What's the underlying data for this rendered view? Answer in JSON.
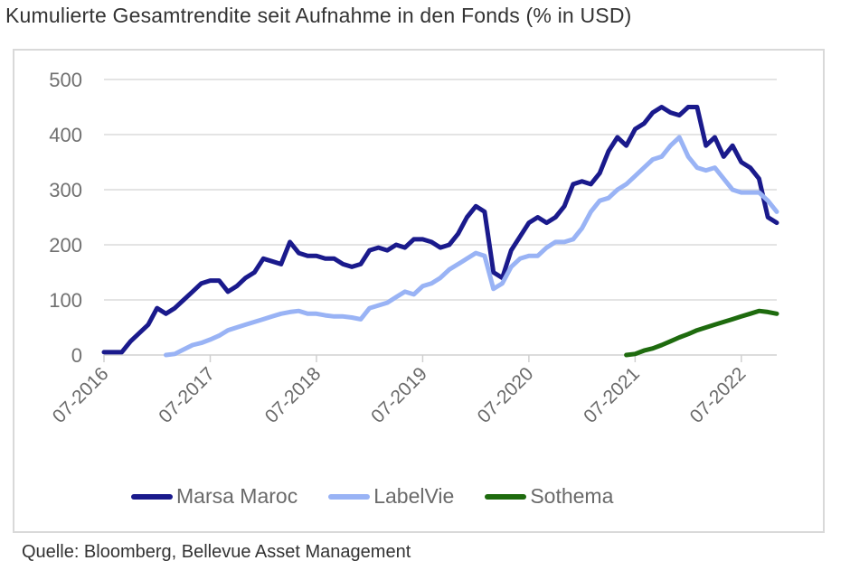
{
  "title": "Kumulierte Gesamtrendite seit Aufnahme in den Fonds (% in USD)",
  "source": "Quelle: Bloomberg, Bellevue Asset Management",
  "chart_data": {
    "type": "line",
    "title": "Kumulierte Gesamtrendite seit Aufnahme in den Fonds (% in USD)",
    "xlabel": "",
    "ylabel": "",
    "ylim": [
      0,
      500
    ],
    "yticks": [
      0,
      100,
      200,
      300,
      400,
      500
    ],
    "xlim": [
      "2016-07",
      "2022-11"
    ],
    "xticks": [
      {
        "date": "2016-07",
        "label": "07-2016"
      },
      {
        "date": "2017-07",
        "label": "07-2017"
      },
      {
        "date": "2018-07",
        "label": "07-2018"
      },
      {
        "date": "2019-07",
        "label": "07-2019"
      },
      {
        "date": "2020-07",
        "label": "07-2020"
      },
      {
        "date": "2021-07",
        "label": "07-2021"
      },
      {
        "date": "2022-07",
        "label": "07-2022"
      }
    ],
    "grid": true,
    "legend": "bottom",
    "x": [
      "2016-07",
      "2016-08",
      "2016-09",
      "2016-10",
      "2016-11",
      "2016-12",
      "2017-01",
      "2017-02",
      "2017-03",
      "2017-04",
      "2017-05",
      "2017-06",
      "2017-07",
      "2017-08",
      "2017-09",
      "2017-10",
      "2017-11",
      "2017-12",
      "2018-01",
      "2018-02",
      "2018-03",
      "2018-04",
      "2018-05",
      "2018-06",
      "2018-07",
      "2018-08",
      "2018-09",
      "2018-10",
      "2018-11",
      "2018-12",
      "2019-01",
      "2019-02",
      "2019-03",
      "2019-04",
      "2019-05",
      "2019-06",
      "2019-07",
      "2019-08",
      "2019-09",
      "2019-10",
      "2019-11",
      "2019-12",
      "2020-01",
      "2020-02",
      "2020-03",
      "2020-04",
      "2020-05",
      "2020-06",
      "2020-07",
      "2020-08",
      "2020-09",
      "2020-10",
      "2020-11",
      "2020-12",
      "2021-01",
      "2021-02",
      "2021-03",
      "2021-04",
      "2021-05",
      "2021-06",
      "2021-07",
      "2021-08",
      "2021-09",
      "2021-10",
      "2021-11",
      "2021-12",
      "2022-01",
      "2022-02",
      "2022-03",
      "2022-04",
      "2022-05",
      "2022-06",
      "2022-07",
      "2022-08",
      "2022-09",
      "2022-10",
      "2022-11"
    ],
    "series": [
      {
        "name": "Marsa Maroc",
        "color": "#1a1a8c",
        "values": [
          5,
          5,
          5,
          25,
          40,
          55,
          85,
          75,
          85,
          100,
          115,
          130,
          135,
          135,
          115,
          125,
          140,
          150,
          175,
          170,
          165,
          205,
          185,
          180,
          180,
          175,
          175,
          165,
          160,
          165,
          190,
          195,
          190,
          200,
          195,
          210,
          210,
          205,
          195,
          200,
          220,
          250,
          270,
          260,
          150,
          140,
          190,
          215,
          240,
          250,
          240,
          250,
          270,
          310,
          315,
          310,
          330,
          370,
          395,
          380,
          410,
          420,
          440,
          450,
          440,
          435,
          450,
          450,
          380,
          395,
          360,
          380,
          350,
          340,
          320,
          250,
          240
        ]
      },
      {
        "name": "LabelVie",
        "color": "#99b3f5",
        "values": [
          null,
          null,
          null,
          null,
          null,
          null,
          null,
          0,
          2,
          10,
          18,
          22,
          28,
          35,
          45,
          50,
          55,
          60,
          65,
          70,
          75,
          78,
          80,
          75,
          75,
          72,
          70,
          70,
          68,
          65,
          85,
          90,
          95,
          105,
          115,
          110,
          125,
          130,
          140,
          155,
          165,
          175,
          185,
          180,
          120,
          130,
          160,
          175,
          180,
          180,
          195,
          205,
          205,
          210,
          230,
          260,
          280,
          285,
          300,
          310,
          325,
          340,
          355,
          360,
          380,
          395,
          360,
          340,
          335,
          340,
          320,
          300,
          295,
          295,
          295,
          280,
          260
        ]
      },
      {
        "name": "Sothema",
        "color": "#1e6b0e",
        "values": [
          null,
          null,
          null,
          null,
          null,
          null,
          null,
          null,
          null,
          null,
          null,
          null,
          null,
          null,
          null,
          null,
          null,
          null,
          null,
          null,
          null,
          null,
          null,
          null,
          null,
          null,
          null,
          null,
          null,
          null,
          null,
          null,
          null,
          null,
          null,
          null,
          null,
          null,
          null,
          null,
          null,
          null,
          null,
          null,
          null,
          null,
          null,
          null,
          null,
          null,
          null,
          null,
          null,
          null,
          null,
          null,
          null,
          null,
          null,
          0,
          2,
          8,
          12,
          18,
          25,
          32,
          38,
          45,
          50,
          55,
          60,
          65,
          70,
          75,
          80,
          78,
          75
        ]
      }
    ]
  }
}
